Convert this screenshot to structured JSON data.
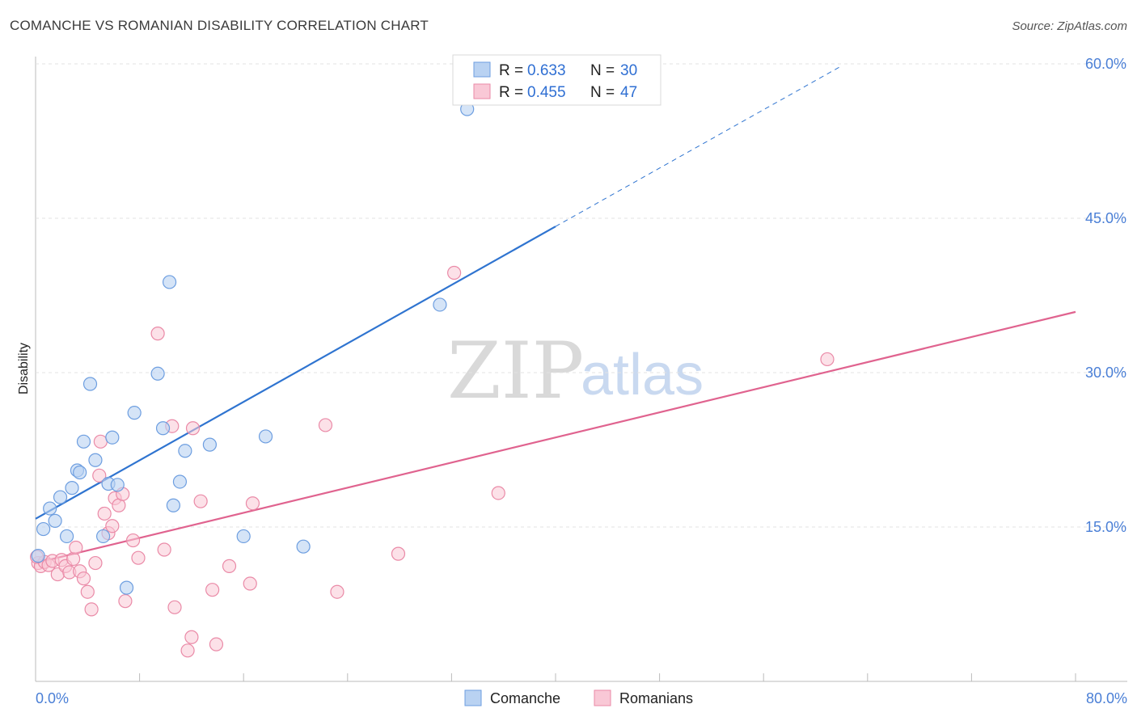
{
  "header": {
    "title": "COMANCHE VS ROMANIAN DISABILITY CORRELATION CHART",
    "source": "Source: ZipAtlas.com"
  },
  "watermark": {
    "zip": "ZIP",
    "atlas": "atlas"
  },
  "colors": {
    "comanche_fill": "#b9d2f2",
    "comanche_stroke": "#6d9ee0",
    "comanche_line": "#2f74d0",
    "romanian_fill": "#f9c8d6",
    "romanian_stroke": "#ea8aa7",
    "romanian_line": "#e0638f",
    "tick_label": "#4a7fd6"
  },
  "legend": {
    "rows": [
      {
        "r_label": "R =",
        "r_value": "0.633",
        "n_label": "N =",
        "n_value": "30"
      },
      {
        "r_label": "R =",
        "r_value": "0.455",
        "n_label": "N =",
        "n_value": "47"
      }
    ]
  },
  "bottom_legend": {
    "items": [
      "Comanche",
      "Romanians"
    ]
  },
  "chart_data": {
    "type": "scatter",
    "title": "COMANCHE VS ROMANIAN DISABILITY CORRELATION CHART",
    "xlabel": "",
    "ylabel": "Disability",
    "xlim": [
      0,
      80
    ],
    "ylim": [
      0,
      60
    ],
    "x_tick_labels": [
      "0.0%",
      "80.0%"
    ],
    "y_ticks": [
      15,
      30,
      45,
      60
    ],
    "y_tick_labels": [
      "15.0%",
      "30.0%",
      "45.0%",
      "60.0%"
    ],
    "series": [
      {
        "name": "Comanche",
        "R": 0.633,
        "N": 30,
        "trend": {
          "x0": 0,
          "y0": 15.8,
          "x1": 40,
          "y1": 44.2,
          "dashed_to_x": 62,
          "dashed_to_y": 59.8
        },
        "points": [
          [
            0.2,
            12.2
          ],
          [
            0.6,
            14.8
          ],
          [
            1.1,
            16.8
          ],
          [
            1.5,
            15.6
          ],
          [
            1.9,
            17.9
          ],
          [
            2.4,
            14.1
          ],
          [
            2.8,
            18.8
          ],
          [
            3.2,
            20.5
          ],
          [
            3.4,
            20.3
          ],
          [
            3.7,
            23.3
          ],
          [
            4.2,
            28.9
          ],
          [
            4.6,
            21.5
          ],
          [
            5.2,
            14.1
          ],
          [
            5.6,
            19.2
          ],
          [
            5.9,
            23.7
          ],
          [
            6.3,
            19.1
          ],
          [
            7.0,
            9.1
          ],
          [
            7.6,
            26.1
          ],
          [
            9.4,
            29.9
          ],
          [
            9.8,
            24.6
          ],
          [
            10.3,
            38.8
          ],
          [
            10.6,
            17.1
          ],
          [
            11.1,
            19.4
          ],
          [
            11.5,
            22.4
          ],
          [
            13.4,
            23.0
          ],
          [
            16.0,
            14.1
          ],
          [
            17.7,
            23.8
          ],
          [
            20.6,
            13.1
          ],
          [
            31.1,
            36.6
          ],
          [
            33.2,
            55.6
          ]
        ]
      },
      {
        "name": "Romanians",
        "R": 0.455,
        "N": 47,
        "trend": {
          "x0": 0,
          "y0": 11.5,
          "x1": 80,
          "y1": 35.9
        },
        "points": [
          [
            0.2,
            11.5
          ],
          [
            0.4,
            11.2
          ],
          [
            0.7,
            11.6
          ],
          [
            1.0,
            11.3
          ],
          [
            1.3,
            11.7
          ],
          [
            1.7,
            10.4
          ],
          [
            2.0,
            11.8
          ],
          [
            2.3,
            11.2
          ],
          [
            2.6,
            10.6
          ],
          [
            2.9,
            11.9
          ],
          [
            3.1,
            13.0
          ],
          [
            3.4,
            10.7
          ],
          [
            3.7,
            10.0
          ],
          [
            4.0,
            8.7
          ],
          [
            4.3,
            7.0
          ],
          [
            4.6,
            11.5
          ],
          [
            4.9,
            20.0
          ],
          [
            5.0,
            23.3
          ],
          [
            5.3,
            16.3
          ],
          [
            5.6,
            14.4
          ],
          [
            5.9,
            15.1
          ],
          [
            6.1,
            17.8
          ],
          [
            6.4,
            17.1
          ],
          [
            6.7,
            18.2
          ],
          [
            6.9,
            7.8
          ],
          [
            7.5,
            13.7
          ],
          [
            7.9,
            12.0
          ],
          [
            9.4,
            33.8
          ],
          [
            9.9,
            12.8
          ],
          [
            10.5,
            24.8
          ],
          [
            10.7,
            7.2
          ],
          [
            11.7,
            3.0
          ],
          [
            12.0,
            4.3
          ],
          [
            12.1,
            24.6
          ],
          [
            12.7,
            17.5
          ],
          [
            13.6,
            8.9
          ],
          [
            13.9,
            3.6
          ],
          [
            14.9,
            11.2
          ],
          [
            16.5,
            9.5
          ],
          [
            16.7,
            17.3
          ],
          [
            22.3,
            24.9
          ],
          [
            23.2,
            8.7
          ],
          [
            27.9,
            12.4
          ],
          [
            32.2,
            39.7
          ],
          [
            35.6,
            18.3
          ],
          [
            60.9,
            31.3
          ],
          [
            0.1,
            12.1
          ]
        ]
      }
    ]
  }
}
